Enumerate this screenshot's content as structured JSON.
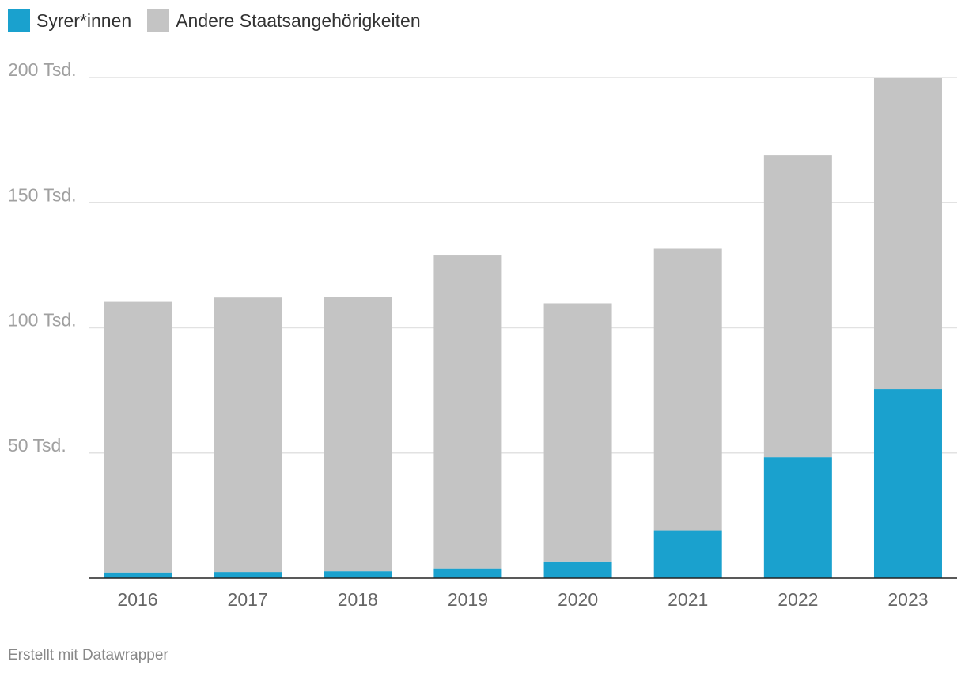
{
  "legend": [
    {
      "name": "Syrer*innen",
      "color": "#1aa1ce"
    },
    {
      "name": "Andere Staatsangehörigkeiten",
      "color": "#c4c4c4"
    }
  ],
  "footer": "Erstellt mit Datawrapper",
  "chart_data": {
    "type": "bar",
    "stacked": true,
    "categories": [
      "2016",
      "2017",
      "2018",
      "2019",
      "2020",
      "2021",
      "2022",
      "2023"
    ],
    "series": [
      {
        "name": "Syrer*innen",
        "color": "#1aa1ce",
        "values": [
          2.3,
          2.5,
          2.8,
          3.9,
          6.7,
          19.1,
          48.3,
          75.5
        ]
      },
      {
        "name": "Andere Staatsangehörigkeiten",
        "color": "#c4c4c4",
        "values": [
          108.1,
          109.6,
          109.5,
          125.0,
          103.1,
          112.5,
          120.7,
          124.5
        ]
      }
    ],
    "ylim": [
      0,
      200
    ],
    "yticks": [
      {
        "value": 50,
        "label": "50 Tsd."
      },
      {
        "value": 100,
        "label": "100 Tsd."
      },
      {
        "value": 150,
        "label": "150 Tsd."
      },
      {
        "value": 200,
        "label": "200 Tsd."
      }
    ],
    "grid": true,
    "legend_position": "top-left"
  }
}
